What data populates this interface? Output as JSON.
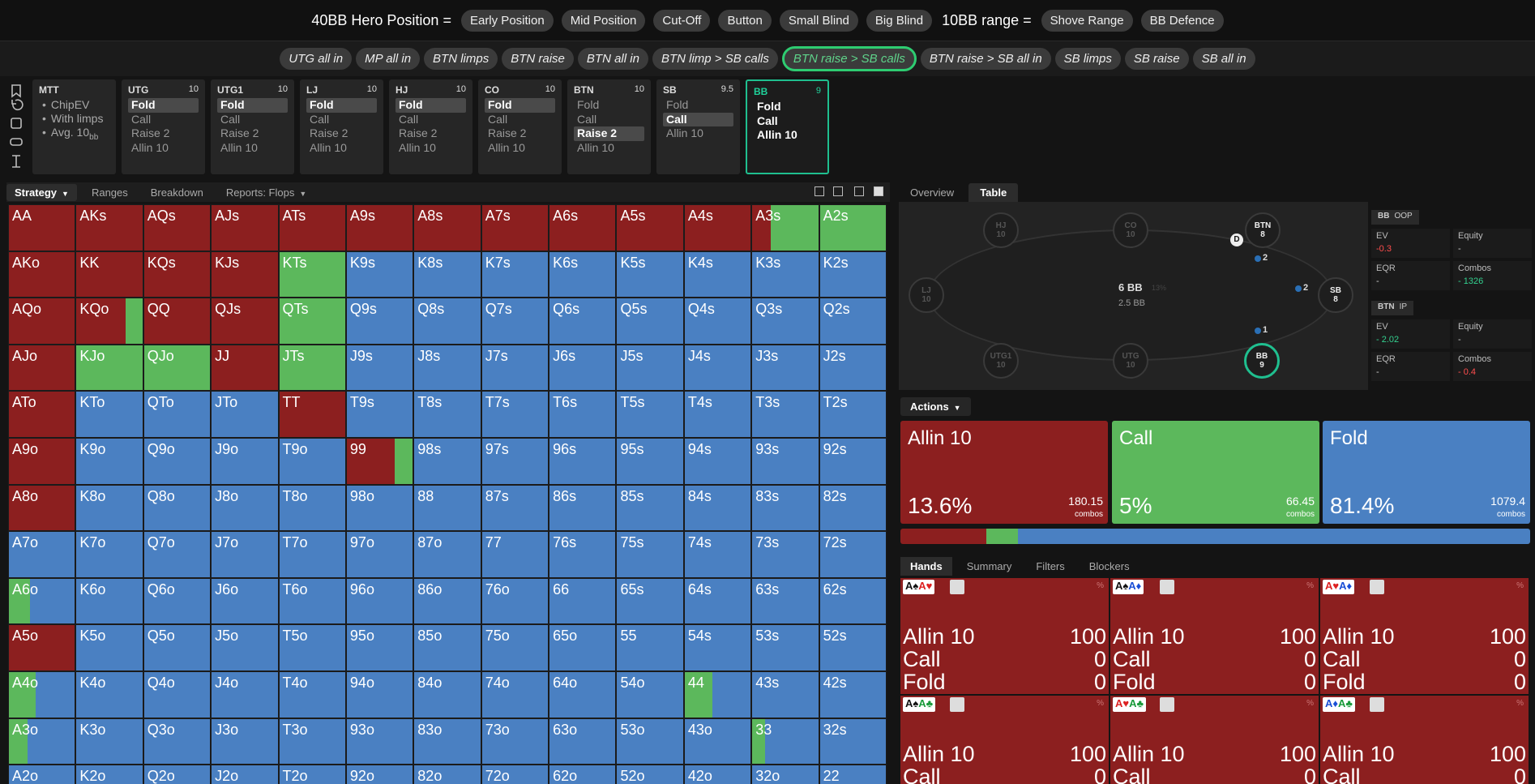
{
  "header": {
    "hero_label": "40BB Hero Position =",
    "hero_buttons": [
      "Early Position",
      "Mid Position",
      "Cut-Off",
      "Button",
      "Small Blind",
      "Big Blind"
    ],
    "range_label": "10BB range =",
    "range_buttons": [
      "Shove Range",
      "BB Defence"
    ]
  },
  "scenarios": {
    "items": [
      "UTG all in",
      "MP all in",
      "BTN limps",
      "BTN raise",
      "BTN all in",
      "BTN limp > SB calls",
      "BTN raise > SB calls",
      "BTN raise > SB all in",
      "SB limps",
      "SB raise",
      "SB all in"
    ],
    "active": 6
  },
  "mtt": {
    "name": "MTT",
    "items": [
      "ChipEV",
      "With limps",
      "Avg. 10"
    ],
    "unit": "bb"
  },
  "positions": [
    {
      "name": "UTG",
      "stack": 10,
      "actions": [
        "Fold",
        "Call",
        "Raise 2",
        "Allin 10"
      ],
      "selected": 0
    },
    {
      "name": "UTG1",
      "stack": 10,
      "actions": [
        "Fold",
        "Call",
        "Raise 2",
        "Allin 10"
      ],
      "selected": 0
    },
    {
      "name": "LJ",
      "stack": 10,
      "actions": [
        "Fold",
        "Call",
        "Raise 2",
        "Allin 10"
      ],
      "selected": 0
    },
    {
      "name": "HJ",
      "stack": 10,
      "actions": [
        "Fold",
        "Call",
        "Raise 2",
        "Allin 10"
      ],
      "selected": 0
    },
    {
      "name": "CO",
      "stack": 10,
      "actions": [
        "Fold",
        "Call",
        "Raise 2",
        "Allin 10"
      ],
      "selected": 0
    },
    {
      "name": "BTN",
      "stack": 10,
      "actions": [
        "Fold",
        "Call",
        "Raise 2",
        "Allin 10"
      ],
      "selected": 2
    },
    {
      "name": "SB",
      "stack": 9.5,
      "actions": [
        "Fold",
        "Call",
        "Allin 10"
      ],
      "selected": 1
    },
    {
      "name": "BB",
      "stack": 9,
      "actions": [
        "Fold",
        "Call",
        "Allin 10"
      ],
      "current": true
    }
  ],
  "tabs": {
    "left": [
      "Strategy",
      "Ranges",
      "Breakdown",
      "Reports: Flops"
    ],
    "right": [
      "Overview",
      "Table"
    ],
    "active_right": 1
  },
  "grid": {
    "hands": [
      [
        "AA",
        "AKs",
        "AQs",
        "AJs",
        "ATs",
        "A9s",
        "A8s",
        "A7s",
        "A6s",
        "A5s",
        "A4s",
        "A3s",
        "A2s"
      ],
      [
        "AKo",
        "KK",
        "KQs",
        "KJs",
        "KTs",
        "K9s",
        "K8s",
        "K7s",
        "K6s",
        "K5s",
        "K4s",
        "K3s",
        "K2s"
      ],
      [
        "AQo",
        "KQo",
        "QQ",
        "QJs",
        "QTs",
        "Q9s",
        "Q8s",
        "Q7s",
        "Q6s",
        "Q5s",
        "Q4s",
        "Q3s",
        "Q2s"
      ],
      [
        "AJo",
        "KJo",
        "QJo",
        "JJ",
        "JTs",
        "J9s",
        "J8s",
        "J7s",
        "J6s",
        "J5s",
        "J4s",
        "J3s",
        "J2s"
      ],
      [
        "ATo",
        "KTo",
        "QTo",
        "JTo",
        "TT",
        "T9s",
        "T8s",
        "T7s",
        "T6s",
        "T5s",
        "T4s",
        "T3s",
        "T2s"
      ],
      [
        "A9o",
        "K9o",
        "Q9o",
        "J9o",
        "T9o",
        "99",
        "98s",
        "97s",
        "96s",
        "95s",
        "94s",
        "93s",
        "92s"
      ],
      [
        "A8o",
        "K8o",
        "Q8o",
        "J8o",
        "T8o",
        "98o",
        "88",
        "87s",
        "86s",
        "85s",
        "84s",
        "83s",
        "82s"
      ],
      [
        "A7o",
        "K7o",
        "Q7o",
        "J7o",
        "T7o",
        "97o",
        "87o",
        "77",
        "76s",
        "75s",
        "74s",
        "73s",
        "72s"
      ],
      [
        "A6o",
        "K6o",
        "Q6o",
        "J6o",
        "T6o",
        "96o",
        "86o",
        "76o",
        "66",
        "65s",
        "64s",
        "63s",
        "62s"
      ],
      [
        "A5o",
        "K5o",
        "Q5o",
        "J5o",
        "T5o",
        "95o",
        "85o",
        "75o",
        "65o",
        "55",
        "54s",
        "53s",
        "52s"
      ],
      [
        "A4o",
        "K4o",
        "Q4o",
        "J4o",
        "T4o",
        "94o",
        "84o",
        "74o",
        "64o",
        "54o",
        "44",
        "43s",
        "42s"
      ],
      [
        "A3o",
        "K3o",
        "Q3o",
        "J3o",
        "T3o",
        "93o",
        "83o",
        "73o",
        "63o",
        "53o",
        "43o",
        "33",
        "32s"
      ],
      [
        "A2o",
        "K2o",
        "Q2o",
        "J2o",
        "T2o",
        "92o",
        "82o",
        "72o",
        "62o",
        "52o",
        "42o",
        "32o",
        "22"
      ]
    ],
    "strategy": [
      [
        [
          100,
          0,
          0
        ],
        [
          100,
          0,
          0
        ],
        [
          100,
          0,
          0
        ],
        [
          100,
          0,
          0
        ],
        [
          100,
          0,
          0
        ],
        [
          100,
          0,
          0
        ],
        [
          100,
          0,
          0
        ],
        [
          100,
          0,
          0
        ],
        [
          100,
          0,
          0
        ],
        [
          100,
          0,
          0
        ],
        [
          100,
          0,
          0
        ],
        [
          28,
          72,
          0
        ],
        [
          0,
          100,
          0
        ]
      ],
      [
        [
          100,
          0,
          0
        ],
        [
          100,
          0,
          0
        ],
        [
          100,
          0,
          0
        ],
        [
          100,
          0,
          0
        ],
        [
          0,
          100,
          0
        ],
        [
          0,
          0,
          100
        ],
        [
          0,
          0,
          100
        ],
        [
          0,
          0,
          100
        ],
        [
          0,
          0,
          100
        ],
        [
          0,
          0,
          100
        ],
        [
          0,
          0,
          100
        ],
        [
          0,
          0,
          100
        ],
        [
          0,
          0,
          100
        ]
      ],
      [
        [
          100,
          0,
          0
        ],
        [
          74,
          26,
          0
        ],
        [
          100,
          0,
          0
        ],
        [
          100,
          0,
          0
        ],
        [
          0,
          100,
          0
        ],
        [
          0,
          0,
          100
        ],
        [
          0,
          0,
          100
        ],
        [
          0,
          0,
          100
        ],
        [
          0,
          0,
          100
        ],
        [
          0,
          0,
          100
        ],
        [
          0,
          0,
          100
        ],
        [
          0,
          0,
          100
        ],
        [
          0,
          0,
          100
        ]
      ],
      [
        [
          100,
          0,
          0
        ],
        [
          0,
          100,
          0
        ],
        [
          0,
          100,
          0
        ],
        [
          100,
          0,
          0
        ],
        [
          0,
          100,
          0
        ],
        [
          0,
          0,
          100
        ],
        [
          0,
          0,
          100
        ],
        [
          0,
          0,
          100
        ],
        [
          0,
          0,
          100
        ],
        [
          0,
          0,
          100
        ],
        [
          0,
          0,
          100
        ],
        [
          0,
          0,
          100
        ],
        [
          0,
          0,
          100
        ]
      ],
      [
        [
          100,
          0,
          0
        ],
        [
          0,
          0,
          100
        ],
        [
          0,
          0,
          100
        ],
        [
          0,
          0,
          100
        ],
        [
          100,
          0,
          0
        ],
        [
          0,
          0,
          100
        ],
        [
          0,
          0,
          100
        ],
        [
          0,
          0,
          100
        ],
        [
          0,
          0,
          100
        ],
        [
          0,
          0,
          100
        ],
        [
          0,
          0,
          100
        ],
        [
          0,
          0,
          100
        ],
        [
          0,
          0,
          100
        ]
      ],
      [
        [
          100,
          0,
          0
        ],
        [
          0,
          0,
          100
        ],
        [
          0,
          0,
          100
        ],
        [
          0,
          0,
          100
        ],
        [
          0,
          0,
          100
        ],
        [
          72,
          28,
          0
        ],
        [
          0,
          0,
          100
        ],
        [
          0,
          0,
          100
        ],
        [
          0,
          0,
          100
        ],
        [
          0,
          0,
          100
        ],
        [
          0,
          0,
          100
        ],
        [
          0,
          0,
          100
        ],
        [
          0,
          0,
          100
        ]
      ],
      [
        [
          100,
          0,
          0
        ],
        [
          0,
          0,
          100
        ],
        [
          0,
          0,
          100
        ],
        [
          0,
          0,
          100
        ],
        [
          0,
          0,
          100
        ],
        [
          0,
          0,
          100
        ],
        [
          0,
          0,
          100
        ],
        [
          0,
          0,
          100
        ],
        [
          0,
          0,
          100
        ],
        [
          0,
          0,
          100
        ],
        [
          0,
          0,
          100
        ],
        [
          0,
          0,
          100
        ],
        [
          0,
          0,
          100
        ]
      ],
      [
        [
          0,
          0,
          100
        ],
        [
          0,
          0,
          100
        ],
        [
          0,
          0,
          100
        ],
        [
          0,
          0,
          100
        ],
        [
          0,
          0,
          100
        ],
        [
          0,
          0,
          100
        ],
        [
          0,
          0,
          100
        ],
        [
          0,
          0,
          100
        ],
        [
          0,
          0,
          100
        ],
        [
          0,
          0,
          100
        ],
        [
          0,
          0,
          100
        ],
        [
          0,
          0,
          100
        ],
        [
          0,
          0,
          100
        ]
      ],
      [
        [
          0,
          32,
          68
        ],
        [
          0,
          0,
          100
        ],
        [
          0,
          0,
          100
        ],
        [
          0,
          0,
          100
        ],
        [
          0,
          0,
          100
        ],
        [
          0,
          0,
          100
        ],
        [
          0,
          0,
          100
        ],
        [
          0,
          0,
          100
        ],
        [
          0,
          0,
          100
        ],
        [
          0,
          0,
          100
        ],
        [
          0,
          0,
          100
        ],
        [
          0,
          0,
          100
        ],
        [
          0,
          0,
          100
        ]
      ],
      [
        [
          100,
          0,
          0
        ],
        [
          0,
          0,
          100
        ],
        [
          0,
          0,
          100
        ],
        [
          0,
          0,
          100
        ],
        [
          0,
          0,
          100
        ],
        [
          0,
          0,
          100
        ],
        [
          0,
          0,
          100
        ],
        [
          0,
          0,
          100
        ],
        [
          0,
          0,
          100
        ],
        [
          0,
          0,
          100
        ],
        [
          0,
          0,
          100
        ],
        [
          0,
          0,
          100
        ],
        [
          0,
          0,
          100
        ]
      ],
      [
        [
          0,
          40,
          60
        ],
        [
          0,
          0,
          100
        ],
        [
          0,
          0,
          100
        ],
        [
          0,
          0,
          100
        ],
        [
          0,
          0,
          100
        ],
        [
          0,
          0,
          100
        ],
        [
          0,
          0,
          100
        ],
        [
          0,
          0,
          100
        ],
        [
          0,
          0,
          100
        ],
        [
          0,
          0,
          100
        ],
        [
          0,
          42,
          58
        ],
        [
          0,
          0,
          100
        ],
        [
          0,
          0,
          100
        ]
      ],
      [
        [
          0,
          28,
          72
        ],
        [
          0,
          0,
          100
        ],
        [
          0,
          0,
          100
        ],
        [
          0,
          0,
          100
        ],
        [
          0,
          0,
          100
        ],
        [
          0,
          0,
          100
        ],
        [
          0,
          0,
          100
        ],
        [
          0,
          0,
          100
        ],
        [
          0,
          0,
          100
        ],
        [
          0,
          0,
          100
        ],
        [
          0,
          0,
          100
        ],
        [
          0,
          19,
          81
        ],
        [
          0,
          0,
          100
        ]
      ],
      [
        [
          0,
          0,
          100
        ],
        [
          0,
          0,
          100
        ],
        [
          0,
          0,
          100
        ],
        [
          0,
          0,
          100
        ],
        [
          0,
          0,
          100
        ],
        [
          0,
          0,
          100
        ],
        [
          0,
          0,
          100
        ],
        [
          0,
          0,
          100
        ],
        [
          0,
          0,
          100
        ],
        [
          0,
          0,
          100
        ],
        [
          0,
          0,
          100
        ],
        [
          0,
          0,
          100
        ],
        [
          0,
          0,
          100
        ]
      ]
    ]
  },
  "table": {
    "seats": [
      {
        "name": "HJ",
        "stack": 10
      },
      {
        "name": "CO",
        "stack": 10
      },
      {
        "name": "BTN",
        "stack": 8
      },
      {
        "name": "LJ",
        "stack": 10
      },
      {
        "name": "SB",
        "stack": 8
      },
      {
        "name": "UTG1",
        "stack": 10
      },
      {
        "name": "UTG",
        "stack": 10
      },
      {
        "name": "BB",
        "stack": 9,
        "current": true
      }
    ],
    "pot": "6 BB",
    "pot_pct": "13%",
    "to_call": "2.5 BB",
    "dealer": "D",
    "bets": [
      2,
      2,
      1
    ],
    "stats": [
      {
        "title": "BB",
        "tag": "OOP",
        "cells": [
          {
            "label": "EV",
            "value": "-0.3",
            "tone": "neg"
          },
          {
            "label": "Equity",
            "value": "-"
          },
          {
            "label": "EQR",
            "value": "-"
          },
          {
            "label": "Combos",
            "value": "- 1326",
            "tone": "pos"
          }
        ]
      },
      {
        "title": "BTN",
        "tag": "IP",
        "cells": [
          {
            "label": "EV",
            "value": "- 2.02",
            "tone": "pos"
          },
          {
            "label": "Equity",
            "value": "-"
          },
          {
            "label": "EQR",
            "value": "-"
          },
          {
            "label": "Combos",
            "value": "- 0.4",
            "tone": "neg"
          }
        ]
      }
    ]
  },
  "actions_panel": {
    "title": "Actions",
    "combos_label": "combos",
    "items": [
      {
        "name": "Allin 10",
        "freq": {
          "value": 13.6,
          "label": "13.6%"
        },
        "combos": 180.15,
        "color": "#8c1f1f"
      },
      {
        "name": "Call",
        "freq": {
          "value": 5,
          "label": "5%"
        },
        "combos": 66.45,
        "color": "#5cb85c"
      },
      {
        "name": "Fold",
        "freq": {
          "value": 81.4,
          "label": "81.4%"
        },
        "combos": 1079.4,
        "color": "#4a80c2"
      }
    ]
  },
  "hands_panel": {
    "tabs": [
      "Hands",
      "Summary",
      "Filters",
      "Blockers"
    ],
    "pct_symbol": "%",
    "cards": [
      {
        "cards": [
          "A♠",
          "A♥"
        ],
        "rows": [
          {
            "name": "Allin 10",
            "value": 100
          },
          {
            "name": "Call",
            "value": 0
          },
          {
            "name": "Fold",
            "value": 0
          }
        ]
      },
      {
        "cards": [
          "A♠",
          "A♦"
        ],
        "rows": [
          {
            "name": "Allin 10",
            "value": 100
          },
          {
            "name": "Call",
            "value": 0
          },
          {
            "name": "Fold",
            "value": 0
          }
        ]
      },
      {
        "cards": [
          "A♥",
          "A♦"
        ],
        "rows": [
          {
            "name": "Allin 10",
            "value": 100
          },
          {
            "name": "Call",
            "value": 0
          },
          {
            "name": "Fold",
            "value": 0
          }
        ]
      },
      {
        "cards": [
          "A♠",
          "A♣"
        ],
        "rows": [
          {
            "name": "Allin 10",
            "value": 100
          },
          {
            "name": "Call",
            "value": 0
          }
        ]
      },
      {
        "cards": [
          "A♥",
          "A♣"
        ],
        "rows": [
          {
            "name": "Allin 10",
            "value": 100
          },
          {
            "name": "Call",
            "value": 0
          }
        ]
      },
      {
        "cards": [
          "A♦",
          "A♣"
        ],
        "rows": [
          {
            "name": "Allin 10",
            "value": 100
          },
          {
            "name": "Call",
            "value": 0
          }
        ]
      }
    ]
  }
}
